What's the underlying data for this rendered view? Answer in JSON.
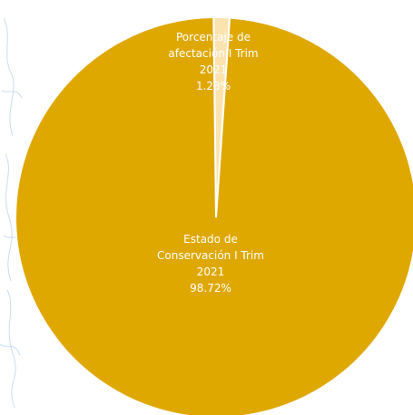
{
  "chart_data": {
    "type": "pie",
    "title": "",
    "slices": [
      {
        "name_lines": [
          "Porcentaje de",
          "afectación I Trim",
          "2021"
        ],
        "percent_label": "1.28%",
        "value": 1.28,
        "color": "#fbe3b0"
      },
      {
        "name_lines": [
          "Estado de",
          "Conservación I Trim",
          "2021"
        ],
        "percent_label": "98.72%",
        "value": 98.72,
        "color": "#dfa800"
      }
    ],
    "legend": "none",
    "border_color": "#ffffff"
  }
}
